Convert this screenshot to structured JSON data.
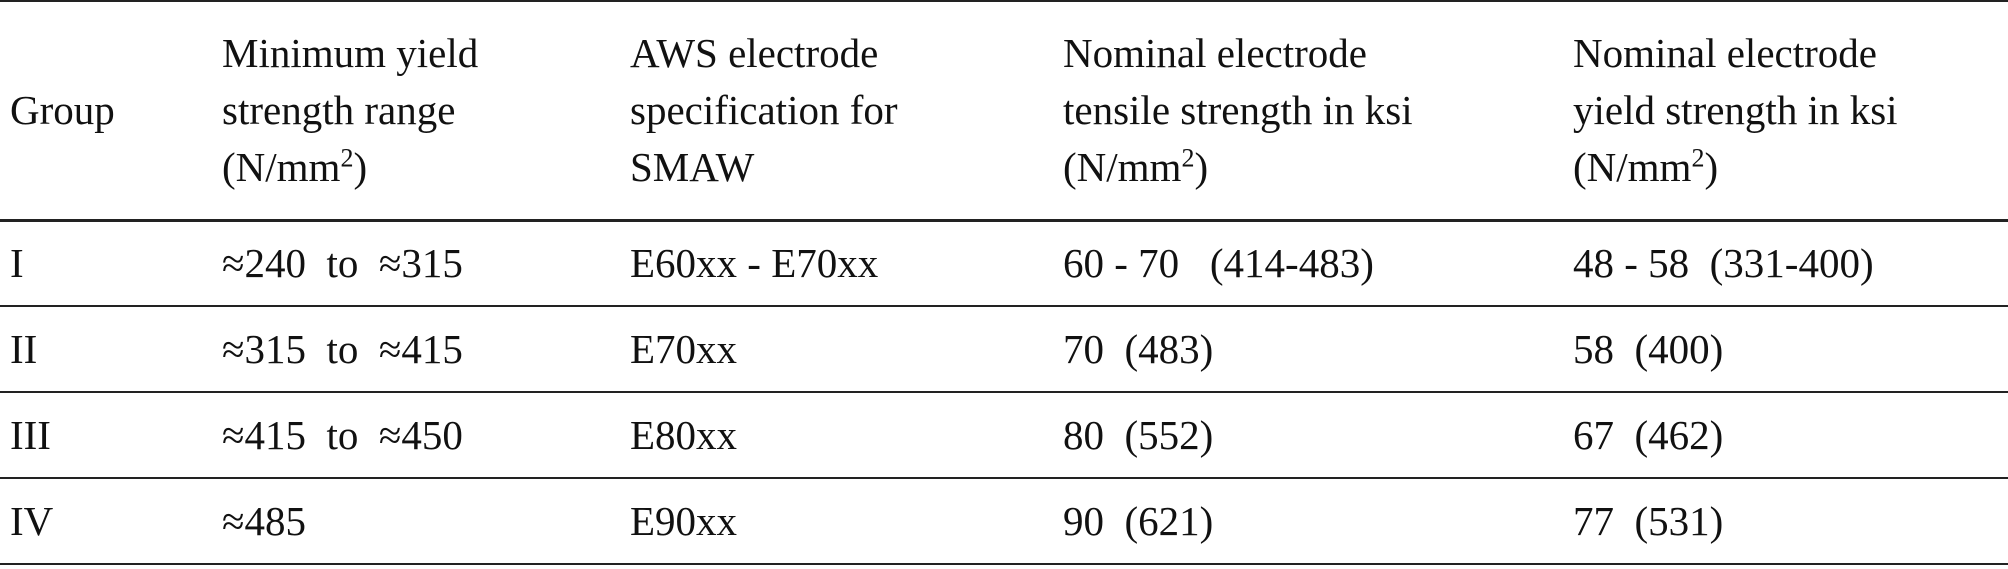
{
  "table": {
    "header": [
      {
        "lines": [
          "Group"
        ]
      },
      {
        "lines": [
          "Minimum yield",
          "strength range"
        ],
        "unit_open": "(N/mm",
        "exponent": "2",
        "unit_close": ")"
      },
      {
        "lines": [
          "AWS electrode",
          "specification for",
          "SMAW"
        ]
      },
      {
        "lines": [
          "Nominal electrode",
          "tensile strength in ksi"
        ],
        "unit_open": "(N/mm",
        "exponent": "2",
        "unit_close": ")"
      },
      {
        "lines": [
          "Nominal electrode",
          "yield strength in ksi"
        ],
        "unit_open": "(N/mm",
        "exponent": "2",
        "unit_close": ")"
      }
    ],
    "rows": [
      [
        "I",
        "≈240  to  ≈315",
        "E60xx - E70xx",
        "60 - 70   (414-483)",
        "48 - 58  (331-400)"
      ],
      [
        "II",
        "≈315  to  ≈415",
        "E70xx",
        "70  (483)",
        "58  (400)"
      ],
      [
        "III",
        "≈415  to  ≈450",
        "E80xx",
        "80  (552)",
        "67  (462)"
      ],
      [
        "IV",
        "≈485",
        "E90xx",
        "90  (621)",
        "77  (531)"
      ]
    ]
  }
}
